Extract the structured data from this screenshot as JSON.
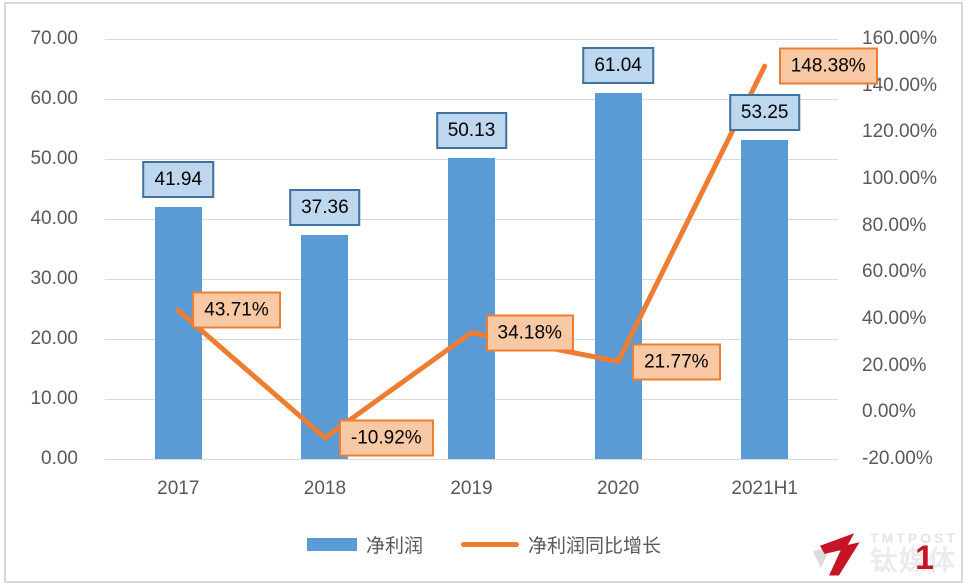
{
  "chart_data": {
    "type": "bar",
    "subtype": "combo-bar-line",
    "title": "",
    "categories": [
      "2017",
      "2018",
      "2019",
      "2020",
      "2021H1"
    ],
    "series": [
      {
        "name": "净利润",
        "type": "bar",
        "axis": "left",
        "values": [
          41.94,
          37.36,
          50.13,
          61.04,
          53.25
        ],
        "data_labels": [
          "41.94",
          "37.36",
          "50.13",
          "61.04",
          "53.25"
        ],
        "color": "#5b9bd5",
        "label_fill": "#bdd7ee",
        "label_border": "#41719c"
      },
      {
        "name": "净利润同比增长",
        "type": "line",
        "axis": "right",
        "values": [
          43.71,
          -10.92,
          34.18,
          21.77,
          148.38
        ],
        "data_labels": [
          "43.71%",
          "-10.92%",
          "34.18%",
          "21.77%",
          "148.38%"
        ],
        "color": "#ed7d31",
        "label_fill": "#f8c9a4",
        "label_border": "#ed7d31"
      }
    ],
    "left_axis": {
      "min": 0,
      "max": 70,
      "step": 10,
      "tick_labels": [
        "0.00",
        "10.00",
        "20.00",
        "30.00",
        "40.00",
        "50.00",
        "60.00",
        "70.00"
      ]
    },
    "right_axis": {
      "min": -20,
      "max": 160,
      "step": 20,
      "tick_labels": [
        "-20.00%",
        "0.00%",
        "20.00%",
        "40.00%",
        "60.00%",
        "80.00%",
        "100.00%",
        "120.00%",
        "140.00%",
        "160.00%"
      ]
    },
    "grid": true,
    "legend_position": "bottom"
  },
  "legend": {
    "items": [
      {
        "label": "净利润",
        "swatch": "bar"
      },
      {
        "label": "净利润同比增长",
        "swatch": "line"
      }
    ]
  },
  "watermark": {
    "brand": "TMTPOST",
    "brand_cn": "钛媒体",
    "red_numeral": "1",
    "logo": "tmtpost-7-icon"
  },
  "colors": {
    "bar": "#5b9bd5",
    "line": "#ed7d31",
    "bar_label_fill": "#bdd7ee",
    "bar_label_border": "#41719c",
    "line_label_fill": "#f8c9a4",
    "line_label_border": "#ed7d31",
    "axis_text": "#595959",
    "gridline": "#d9d9d9",
    "frame_border": "#d9d9d9",
    "watermark_red": "#c41425"
  }
}
